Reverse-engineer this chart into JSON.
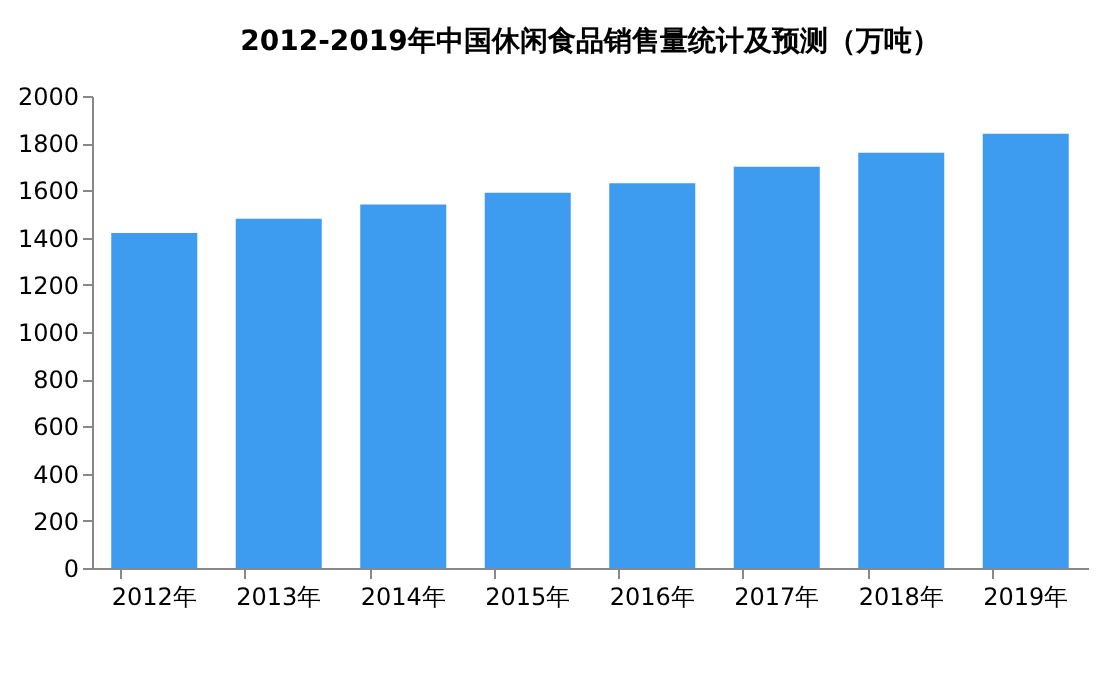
{
  "chart_data": {
    "type": "bar",
    "title": "2012-2019年中国休闲食品销售量统计及预测（万吨）",
    "categories": [
      "2012年",
      "2013年",
      "2014年",
      "2015年",
      "2016年",
      "2017年",
      "2018年",
      "2019年"
    ],
    "values": [
      1420,
      1480,
      1540,
      1590,
      1630,
      1700,
      1760,
      1840
    ],
    "color": "#3d9bf0",
    "ylim": [
      0,
      2000
    ],
    "yticks": [
      0,
      200,
      400,
      600,
      800,
      1000,
      1200,
      1400,
      1600,
      1800,
      2000
    ],
    "grid": false
  }
}
